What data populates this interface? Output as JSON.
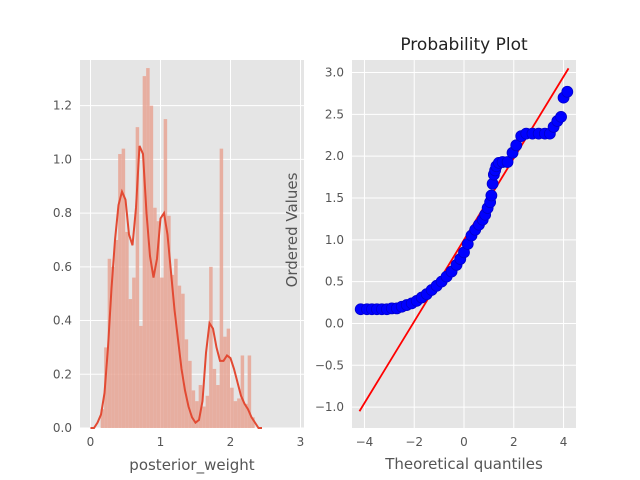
{
  "chart_data": [
    {
      "type": "bar",
      "subtype": "histogram_with_kde",
      "title": "",
      "xlabel": "posterior_weight",
      "ylabel": "",
      "xlim": [
        -0.15,
        3.05
      ],
      "ylim": [
        0,
        1.37
      ],
      "xticks": [
        "0",
        "1",
        "2",
        "3"
      ],
      "yticks": [
        "0.0",
        "0.2",
        "0.4",
        "0.6",
        "0.8",
        "1.0",
        "1.2"
      ],
      "grid": true,
      "background": "#e5e5e5",
      "bar_color": "#e8a494",
      "line_color": "#e24a33",
      "bin_width": 0.05,
      "bins": [
        {
          "x": 0.17,
          "h": 0.07
        },
        {
          "x": 0.22,
          "h": 0.3
        },
        {
          "x": 0.27,
          "h": 0.63
        },
        {
          "x": 0.32,
          "h": 0.6
        },
        {
          "x": 0.37,
          "h": 0.7
        },
        {
          "x": 0.42,
          "h": 1.02
        },
        {
          "x": 0.47,
          "h": 1.04
        },
        {
          "x": 0.52,
          "h": 0.73
        },
        {
          "x": 0.57,
          "h": 0.48
        },
        {
          "x": 0.62,
          "h": 0.56
        },
        {
          "x": 0.67,
          "h": 1.12
        },
        {
          "x": 0.72,
          "h": 0.38
        },
        {
          "x": 0.77,
          "h": 1.31
        },
        {
          "x": 0.82,
          "h": 1.34
        },
        {
          "x": 0.87,
          "h": 1.2
        },
        {
          "x": 0.92,
          "h": 0.82
        },
        {
          "x": 0.97,
          "h": 0.77
        },
        {
          "x": 1.02,
          "h": 0.56
        },
        {
          "x": 1.07,
          "h": 1.15
        },
        {
          "x": 1.12,
          "h": 0.79
        },
        {
          "x": 1.17,
          "h": 0.57
        },
        {
          "x": 1.22,
          "h": 0.63
        },
        {
          "x": 1.27,
          "h": 0.53
        },
        {
          "x": 1.32,
          "h": 0.5
        },
        {
          "x": 1.37,
          "h": 0.33
        },
        {
          "x": 1.42,
          "h": 0.25
        },
        {
          "x": 1.47,
          "h": 0.14
        },
        {
          "x": 1.52,
          "h": 0.1
        },
        {
          "x": 1.57,
          "h": 0.16
        },
        {
          "x": 1.62,
          "h": 0.08
        },
        {
          "x": 1.67,
          "h": 0.12
        },
        {
          "x": 1.72,
          "h": 0.6
        },
        {
          "x": 1.77,
          "h": 0.22
        },
        {
          "x": 1.82,
          "h": 0.16
        },
        {
          "x": 1.87,
          "h": 1.04
        },
        {
          "x": 1.92,
          "h": 0.34
        },
        {
          "x": 1.97,
          "h": 0.37
        },
        {
          "x": 2.02,
          "h": 0.15
        },
        {
          "x": 2.07,
          "h": 0.1
        },
        {
          "x": 2.12,
          "h": 0.11
        },
        {
          "x": 2.17,
          "h": 0.27
        },
        {
          "x": 2.22,
          "h": 0.09
        },
        {
          "x": 2.27,
          "h": 0.27
        },
        {
          "x": 2.32,
          "h": 0.04
        }
      ],
      "kde": {
        "x": [
          0.0,
          0.05,
          0.1,
          0.15,
          0.2,
          0.25,
          0.3,
          0.35,
          0.4,
          0.45,
          0.5,
          0.55,
          0.6,
          0.65,
          0.7,
          0.75,
          0.8,
          0.85,
          0.9,
          0.95,
          1.0,
          1.05,
          1.1,
          1.15,
          1.2,
          1.25,
          1.3,
          1.35,
          1.4,
          1.45,
          1.5,
          1.55,
          1.6,
          1.65,
          1.7,
          1.75,
          1.8,
          1.85,
          1.9,
          1.95,
          2.0,
          2.05,
          2.1,
          2.15,
          2.2,
          2.25,
          2.3,
          2.35,
          2.4,
          2.45
        ],
        "y": [
          0.0,
          0.0,
          0.02,
          0.05,
          0.13,
          0.3,
          0.52,
          0.7,
          0.83,
          0.88,
          0.85,
          0.72,
          0.68,
          0.82,
          1.05,
          1.02,
          0.8,
          0.64,
          0.56,
          0.63,
          0.78,
          0.8,
          0.72,
          0.58,
          0.44,
          0.33,
          0.22,
          0.14,
          0.08,
          0.04,
          0.02,
          0.03,
          0.1,
          0.28,
          0.39,
          0.37,
          0.3,
          0.25,
          0.25,
          0.27,
          0.26,
          0.22,
          0.17,
          0.12,
          0.09,
          0.07,
          0.04,
          0.02,
          0.0,
          0.0
        ]
      }
    },
    {
      "type": "scatter",
      "subtype": "probability_plot",
      "title": "Probability Plot",
      "xlabel": "Theoretical quantiles",
      "ylabel": "Ordered Values",
      "xlim": [
        -4.5,
        4.5
      ],
      "ylim": [
        -1.25,
        3.15
      ],
      "xticks": [
        {
          "value": -4,
          "label": "−4"
        },
        {
          "value": -2,
          "label": "−2"
        },
        {
          "value": 0,
          "label": "0"
        },
        {
          "value": 2,
          "label": "2"
        },
        {
          "value": 4,
          "label": "4"
        }
      ],
      "yticks": [
        {
          "value": -1.0,
          "label": "−1.0"
        },
        {
          "value": -0.5,
          "label": "−0.5"
        },
        {
          "value": 0.0,
          "label": "0.0"
        },
        {
          "value": 0.5,
          "label": "0.5"
        },
        {
          "value": 1.0,
          "label": "1.0"
        },
        {
          "value": 1.5,
          "label": "1.5"
        },
        {
          "value": 2.0,
          "label": "2.0"
        },
        {
          "value": 2.5,
          "label": "2.5"
        },
        {
          "value": 3.0,
          "label": "3.0"
        }
      ],
      "grid": true,
      "background": "#e5e5e5",
      "point_color": "#0000ff",
      "line_color": "#ff0000",
      "fit_line": {
        "x": [
          -4.2,
          4.2
        ],
        "y": [
          -1.05,
          3.05
        ]
      },
      "points": [
        [
          -4.15,
          0.17
        ],
        [
          -3.9,
          0.17
        ],
        [
          -3.7,
          0.17
        ],
        [
          -3.5,
          0.17
        ],
        [
          -3.3,
          0.17
        ],
        [
          -3.1,
          0.17
        ],
        [
          -2.9,
          0.18
        ],
        [
          -2.7,
          0.18
        ],
        [
          -2.5,
          0.2
        ],
        [
          -2.3,
          0.22
        ],
        [
          -2.1,
          0.24
        ],
        [
          -1.9,
          0.27
        ],
        [
          -1.7,
          0.31
        ],
        [
          -1.5,
          0.35
        ],
        [
          -1.3,
          0.4
        ],
        [
          -1.1,
          0.45
        ],
        [
          -0.9,
          0.5
        ],
        [
          -0.7,
          0.56
        ],
        [
          -0.5,
          0.62
        ],
        [
          -0.3,
          0.7
        ],
        [
          -0.15,
          0.77
        ],
        [
          0.0,
          0.85
        ],
        [
          0.15,
          0.95
        ],
        [
          0.3,
          1.05
        ],
        [
          0.45,
          1.12
        ],
        [
          0.6,
          1.18
        ],
        [
          0.75,
          1.24
        ],
        [
          0.85,
          1.3
        ],
        [
          0.95,
          1.38
        ],
        [
          1.05,
          1.45
        ],
        [
          1.1,
          1.53
        ],
        [
          1.15,
          1.67
        ],
        [
          1.2,
          1.78
        ],
        [
          1.25,
          1.83
        ],
        [
          1.3,
          1.88
        ],
        [
          1.4,
          1.92
        ],
        [
          1.55,
          1.93
        ],
        [
          1.75,
          1.93
        ],
        [
          1.95,
          2.04
        ],
        [
          2.1,
          2.13
        ],
        [
          2.3,
          2.24
        ],
        [
          2.5,
          2.27
        ],
        [
          2.75,
          2.27
        ],
        [
          3.0,
          2.27
        ],
        [
          3.25,
          2.27
        ],
        [
          3.45,
          2.27
        ],
        [
          3.6,
          2.35
        ],
        [
          3.75,
          2.42
        ],
        [
          3.9,
          2.47
        ],
        [
          4.0,
          2.7
        ],
        [
          4.15,
          2.77
        ]
      ]
    }
  ]
}
